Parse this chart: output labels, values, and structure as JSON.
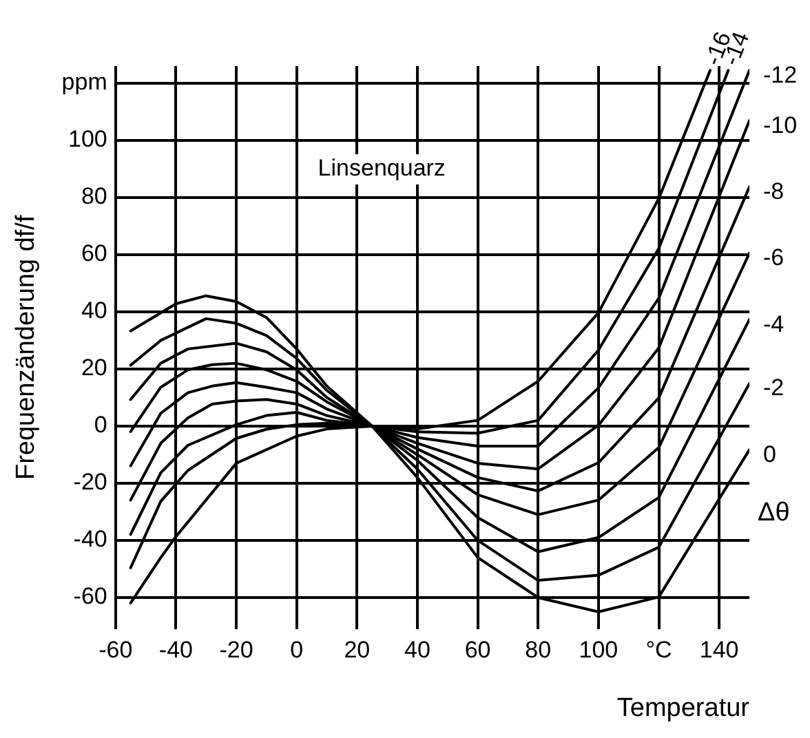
{
  "chart_data": {
    "type": "line",
    "xlabel": "Temperatur",
    "ylabel": "Frequenzänderung df/f",
    "legend_title": "Δθ",
    "annotations": [
      "Linsenquarz"
    ],
    "xlim": [
      -60,
      150
    ],
    "ylim": [
      -71,
      126
    ],
    "xticks": [
      -60,
      -40,
      -20,
      0,
      20,
      40,
      60,
      80,
      100,
      {
        "value": 120,
        "label": "°C"
      },
      140
    ],
    "yticks": [
      -60,
      -40,
      -20,
      0,
      20,
      40,
      60,
      80,
      100,
      {
        "value": 120,
        "label": "ppm"
      }
    ],
    "grid": true,
    "legend": false,
    "marker": "none",
    "line_style": "solid",
    "series": [
      {
        "name": "-16",
        "color": "#000000",
        "x": [
          -55,
          -45,
          -40,
          -20,
          0,
          10,
          25,
          40,
          60,
          80,
          100,
          120,
          137
        ],
        "values": [
          -61.9,
          -46,
          -38.7,
          -13,
          -3.5,
          -1,
          0,
          -1,
          2,
          15.7,
          39.7,
          79.7,
          124.5
        ]
      },
      {
        "name": "-14",
        "color": "#000000",
        "x": [
          -55,
          -45,
          -36,
          -20,
          -10,
          0,
          10,
          25,
          40,
          60,
          80,
          100,
          120,
          143
        ],
        "values": [
          -49.6,
          -26.3,
          -15.5,
          -4.3,
          -1.1,
          0.5,
          1,
          0,
          -2,
          -2.5,
          2,
          26.6,
          62.2,
          124.5
        ]
      },
      {
        "name": "-12",
        "color": "#000000",
        "x": [
          -55,
          -45,
          -36,
          -20,
          -10,
          0,
          10,
          25,
          40,
          60,
          80,
          100,
          120,
          150
        ],
        "values": [
          -37.9,
          -16.3,
          -6.7,
          0.5,
          3.7,
          4.8,
          2,
          0,
          -4,
          -7,
          -7,
          13.4,
          44.8,
          124.5
        ]
      },
      {
        "name": "-10",
        "color": "#000000",
        "x": [
          -55,
          -45,
          -36,
          -28,
          -20,
          -10,
          0,
          10,
          25,
          40,
          60,
          80,
          100,
          120,
          150
        ],
        "values": [
          -25.9,
          -6,
          2.9,
          7.7,
          8.8,
          9.3,
          7.7,
          3.7,
          0,
          -6,
          -13,
          -15,
          0.3,
          27.4,
          106.9
        ]
      },
      {
        "name": "-8",
        "color": "#000000",
        "x": [
          -55,
          -45,
          -36,
          -28,
          -20,
          -10,
          0,
          10,
          25,
          40,
          60,
          80,
          100,
          120,
          150
        ],
        "values": [
          -13.9,
          4.5,
          11.7,
          14,
          15.2,
          13.6,
          11.7,
          6,
          0,
          -8,
          -18,
          -22.7,
          -12.8,
          9.9,
          83.7
        ]
      },
      {
        "name": "-6",
        "color": "#000000",
        "x": [
          -55,
          -45,
          -36,
          -28,
          -20,
          -10,
          0,
          10,
          25,
          40,
          60,
          80,
          100,
          120,
          150
        ],
        "values": [
          -1.9,
          13.6,
          19.7,
          21.5,
          22,
          19.7,
          15.7,
          8.5,
          0,
          -10,
          -24,
          -31,
          -25.9,
          -7.5,
          60.5
        ]
      },
      {
        "name": "-4",
        "color": "#000000",
        "x": [
          -55,
          -45,
          -36,
          -20,
          -10,
          0,
          10,
          25,
          40,
          60,
          80,
          100,
          120,
          150
        ],
        "values": [
          9.3,
          22,
          27,
          29,
          26,
          19.7,
          10,
          0,
          -12,
          -32,
          -44,
          -39,
          -25,
          37.3
        ]
      },
      {
        "name": "-2",
        "color": "#000000",
        "x": [
          -55,
          -45,
          -30,
          -20,
          -10,
          0,
          10,
          25,
          40,
          60,
          80,
          100,
          120,
          150
        ],
        "values": [
          21.3,
          30,
          37.6,
          36,
          31.7,
          23.7,
          12.5,
          0,
          -15,
          -40,
          -54,
          -52.2,
          -42.4,
          14.9
        ]
      },
      {
        "name": "0",
        "color": "#000000",
        "x": [
          -55,
          -40,
          -30,
          -20,
          -10,
          0,
          10,
          25,
          40,
          60,
          80,
          100,
          120,
          150
        ],
        "values": [
          33.3,
          42.8,
          45.6,
          43.6,
          38,
          27,
          14,
          0,
          -18,
          -46,
          -60,
          -65,
          -59.8,
          -8.3
        ]
      }
    ]
  }
}
